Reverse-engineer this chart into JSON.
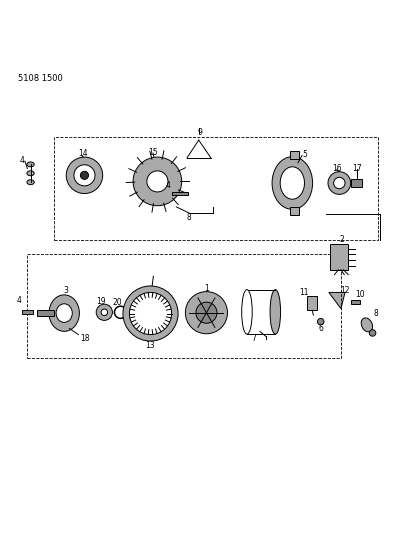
{
  "bg_color": "#ffffff",
  "line_color": "#000000",
  "part_color": "#555555",
  "light_gray": "#aaaaaa",
  "mid_gray": "#888888",
  "dark_gray": "#333333",
  "fig_width": 4.08,
  "fig_height": 5.33,
  "dpi": 100,
  "catalog_number": "5108 1500"
}
